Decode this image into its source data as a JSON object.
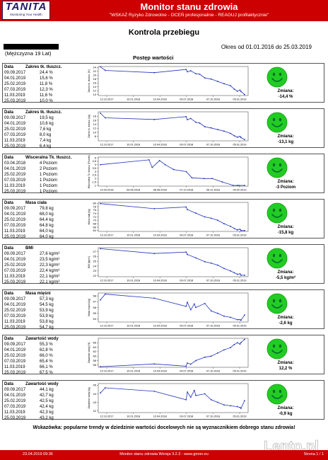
{
  "header": {
    "logo_main": "TANITA",
    "logo_tagline": "Monitoring Your Health",
    "title": "Monitor stanu zdrowia",
    "subtitle": "\"WSKAŻ Ryzyko Zdrowotne - OCEŃ profesjonalnie - REAGUJ profilaktycznie\""
  },
  "document": {
    "title": "Kontrola przebiegu",
    "date_range": "Okres od 01.01.2016 do 25.03.2019",
    "person": "(Mężczyzna 19 Lat)",
    "progress_title": "Postęp wartości"
  },
  "panels": [
    {
      "header_date": "Data",
      "header_label": "Zakres tk. tłuszcz.",
      "rows": [
        [
          "09.09.2017",
          "24,4 %"
        ],
        [
          "04.01.2019",
          "15,6 %"
        ],
        [
          "25.02.2019",
          "11,8 %"
        ],
        [
          "07.03.2019",
          "12,3 %"
        ],
        [
          "11.03.2019",
          "11,6 %"
        ],
        [
          "25.03.2019",
          "10,0 %"
        ]
      ],
      "y_axis_label": "Zakres tk. tłuszcz. [%]",
      "y_ticks": [
        "24",
        "22",
        "20",
        "18",
        "16",
        "14",
        "12",
        "10"
      ],
      "y_range": [
        9.5,
        24.5
      ],
      "x_ticks": [
        "12.10.2017",
        "10.01.2018",
        "10.04.2018",
        "09.07.2018",
        "07.10.2018",
        "05.01.2019"
      ],
      "x_range": [
        "2017-09-09",
        "2019-03-25"
      ],
      "points": [
        [
          "2017-09-09",
          24.4
        ],
        [
          "2017-09-28",
          22.5
        ],
        [
          "2018-04-07",
          21.3
        ],
        [
          "2018-08-09",
          23.0
        ],
        [
          "2018-08-14",
          21.8
        ],
        [
          "2018-08-27",
          22.3
        ],
        [
          "2018-09-16",
          20.8
        ],
        [
          "2018-10-01",
          20.5
        ],
        [
          "2018-10-21",
          18.6
        ],
        [
          "2018-11-15",
          18.0
        ],
        [
          "2018-12-10",
          16.8
        ],
        [
          "2019-01-04",
          15.6
        ],
        [
          "2019-01-29",
          14.6
        ],
        [
          "2019-02-13",
          12.8
        ],
        [
          "2019-02-25",
          11.8
        ],
        [
          "2019-03-07",
          12.3
        ],
        [
          "2019-03-11",
          11.6
        ],
        [
          "2019-03-25",
          10.0
        ]
      ],
      "change_label": "Zmiana:",
      "change_value": "-14,4 %"
    },
    {
      "header_date": "Data",
      "header_label": "Zakres tk. tłuszcz.",
      "rows": [
        [
          "09.09.2017",
          "19,5 kg"
        ],
        [
          "04.01.2019",
          "10,6 kg"
        ],
        [
          "25.02.2019",
          "7,6 kg"
        ],
        [
          "07.03.2019",
          "8,0 kg"
        ],
        [
          "11.03.2019",
          "7,4 kg"
        ],
        [
          "25.03.2019",
          "6,4 kg"
        ]
      ],
      "y_axis_label": "Zakres tk. tłuszcz. [kg]",
      "y_ticks": [
        "18",
        "16",
        "14",
        "12",
        "10",
        "8"
      ],
      "y_range": [
        5.8,
        20.2
      ],
      "x_ticks": [
        "12.10.2017",
        "10.01.2018",
        "10.04.2018",
        "09.07.2018",
        "07.10.2018",
        "05.01.2019"
      ],
      "x_range": [
        "2017-09-09",
        "2019-03-25"
      ],
      "points": [
        [
          "2017-09-09",
          19.5
        ],
        [
          "2017-09-28",
          17.2
        ],
        [
          "2018-04-07",
          16.4
        ],
        [
          "2018-08-09",
          17.8
        ],
        [
          "2018-08-14",
          16.3
        ],
        [
          "2018-08-27",
          16.9
        ],
        [
          "2018-09-16",
          15.0
        ],
        [
          "2018-10-01",
          14.6
        ],
        [
          "2018-10-21",
          12.8
        ],
        [
          "2018-11-15",
          12.2
        ],
        [
          "2018-12-10",
          11.4
        ],
        [
          "2019-01-04",
          10.6
        ],
        [
          "2019-01-29",
          9.5
        ],
        [
          "2019-02-13",
          8.3
        ],
        [
          "2019-02-25",
          7.6
        ],
        [
          "2019-03-07",
          8.0
        ],
        [
          "2019-03-11",
          7.4
        ],
        [
          "2019-03-25",
          6.4
        ]
      ],
      "change_label": "Zmiana:",
      "change_value": "-13,1 kg"
    },
    {
      "header_date": "Data",
      "header_label": "Wisceralna Tk. tłuszcz.",
      "rows": [
        [
          "03.04.2018",
          "4 Poziom"
        ],
        [
          "04.01.2019",
          "2 Poziom"
        ],
        [
          "25.02.2019",
          "1 Poziom"
        ],
        [
          "07.03.2019",
          "1 Poziom"
        ],
        [
          "11.03.2019",
          "1 Poziom"
        ],
        [
          "25.03.2019",
          "1 Poziom"
        ]
      ],
      "y_axis_label": "Wisceralna Tk. tłuszcz. [Poziom]",
      "y_ticks": [
        "5",
        "4,5",
        "4",
        "3,5",
        "3",
        "2,5",
        "2",
        "1,5",
        "1"
      ],
      "y_range": [
        0.9,
        5.1
      ],
      "x_ticks": [
        "10.04.2018",
        "09.06.2018",
        "08.08.2018",
        "07.10.2018",
        "06.12.2018",
        "04.02.2019"
      ],
      "x_range": [
        "2018-04-03",
        "2019-03-25"
      ],
      "points": [
        [
          "2018-04-03",
          4.0
        ],
        [
          "2018-08-01",
          4.7
        ],
        [
          "2018-08-09",
          3.6
        ],
        [
          "2018-08-27",
          4.6
        ],
        [
          "2018-09-10",
          4.0
        ],
        [
          "2018-10-01",
          3.3
        ],
        [
          "2018-11-01",
          3.0
        ],
        [
          "2018-11-15",
          2.1
        ],
        [
          "2018-12-15",
          2.0
        ],
        [
          "2019-01-04",
          2.0
        ],
        [
          "2019-01-29",
          1.5
        ],
        [
          "2019-02-25",
          1.0
        ],
        [
          "2019-03-07",
          1.0
        ],
        [
          "2019-03-11",
          1.0
        ],
        [
          "2019-03-25",
          1.0
        ]
      ],
      "change_label": "Zmiana:",
      "change_value": "-3 Poziom"
    },
    {
      "header_date": "Data",
      "header_label": "Masa ciała",
      "rows": [
        [
          "09.09.2017",
          "79,8 kg"
        ],
        [
          "04.01.2019",
          "68,0 kg"
        ],
        [
          "25.02.2019",
          "64,4 kg"
        ],
        [
          "07.03.2019",
          "64,8 kg"
        ],
        [
          "11.03.2019",
          "64,0 kg"
        ],
        [
          "25.03.2019",
          "64,0 kg"
        ]
      ],
      "y_axis_label": "Masa ciała [kg]",
      "y_ticks": [
        "80",
        "78",
        "76",
        "74",
        "72",
        "70",
        "68",
        "66",
        "64"
      ],
      "y_range": [
        63.5,
        80.5
      ],
      "x_ticks": [
        "12.10.2017",
        "10.01.2018",
        "10.04.2018",
        "09.07.2018",
        "07.10.2018",
        "05.01.2019"
      ],
      "x_range": [
        "2017-09-09",
        "2019-03-25"
      ],
      "points": [
        [
          "2017-09-09",
          79.8
        ],
        [
          "2018-04-07",
          76.8
        ],
        [
          "2018-08-09",
          77.8
        ],
        [
          "2018-08-14",
          76.3
        ],
        [
          "2018-09-16",
          74.2
        ],
        [
          "2018-10-21",
          72.0
        ],
        [
          "2018-11-15",
          71.2
        ],
        [
          "2018-12-10",
          70.0
        ],
        [
          "2019-01-04",
          68.0
        ],
        [
          "2019-01-29",
          66.5
        ],
        [
          "2019-02-13",
          65.2
        ],
        [
          "2019-02-25",
          64.4
        ],
        [
          "2019-03-07",
          64.8
        ],
        [
          "2019-03-11",
          64.0
        ],
        [
          "2019-03-25",
          64.0
        ]
      ],
      "change_label": "Zmiana:",
      "change_value": "-15,8 kg"
    },
    {
      "header_date": "Data",
      "header_label": "BMI",
      "rows": [
        [
          "09.09.2017",
          "27,6 kg/m²"
        ],
        [
          "04.01.2019",
          "23,5 kg/m²"
        ],
        [
          "25.02.2019",
          "22,3 kg/m²"
        ],
        [
          "07.03.2019",
          "22,4 kg/m²"
        ],
        [
          "11.03.2019",
          "22,1 kg/m²"
        ],
        [
          "25.03.2019",
          "22,1 kg/m²"
        ]
      ],
      "y_axis_label": "BMI [kg/m²]",
      "y_ticks": [
        "27",
        "26",
        "25",
        "24",
        "23",
        "22"
      ],
      "y_range": [
        21.8,
        27.8
      ],
      "x_ticks": [
        "12.10.2017",
        "10.01.2018",
        "10.04.2018",
        "09.07.2018",
        "07.10.2018",
        "05.01.2019"
      ],
      "x_range": [
        "2017-09-09",
        "2019-03-25"
      ],
      "points": [
        [
          "2017-09-09",
          27.6
        ],
        [
          "2018-04-07",
          26.6
        ],
        [
          "2018-08-09",
          26.9
        ],
        [
          "2018-08-14",
          26.4
        ],
        [
          "2018-09-16",
          25.7
        ],
        [
          "2018-10-21",
          24.9
        ],
        [
          "2018-11-15",
          24.6
        ],
        [
          "2018-12-10",
          24.2
        ],
        [
          "2019-01-04",
          23.5
        ],
        [
          "2019-01-29",
          23.0
        ],
        [
          "2019-02-13",
          22.6
        ],
        [
          "2019-02-25",
          22.3
        ],
        [
          "2019-03-07",
          22.4
        ],
        [
          "2019-03-11",
          22.1
        ],
        [
          "2019-03-25",
          22.1
        ]
      ],
      "change_label": "Zmiana:",
      "change_value": "-5,5 kg/m²"
    },
    {
      "header_date": "Data",
      "header_label": "Masa mięśni",
      "rows": [
        [
          "09.09.2017",
          "57,3 kg"
        ],
        [
          "04.01.2019",
          "54,5 kg"
        ],
        [
          "25.02.2019",
          "53,9 kg"
        ],
        [
          "07.03.2019",
          "53,9 kg"
        ],
        [
          "11.03.2019",
          "53,8 kg"
        ],
        [
          "25.03.2019",
          "54,7 kg"
        ]
      ],
      "y_axis_label": "Masa mięśni [kg]",
      "y_ticks": [
        "58",
        "57",
        "56",
        "55",
        "54"
      ],
      "y_range": [
        53.5,
        58.5
      ],
      "x_ticks": [
        "12.10.2017",
        "10.01.2018",
        "10.04.2018",
        "09.07.2018",
        "07.10.2018",
        "05.01.2019"
      ],
      "x_range": [
        "2017-09-09",
        "2019-03-25"
      ],
      "points": [
        [
          "2017-09-09",
          57.3
        ],
        [
          "2017-09-28",
          58.3
        ],
        [
          "2018-04-07",
          57.6
        ],
        [
          "2018-08-09",
          56.2
        ],
        [
          "2018-08-14",
          56.9
        ],
        [
          "2018-08-27",
          55.6
        ],
        [
          "2018-09-10",
          56.6
        ],
        [
          "2018-09-16",
          56.0
        ],
        [
          "2018-10-21",
          56.7
        ],
        [
          "2018-11-15",
          55.4
        ],
        [
          "2018-12-10",
          55.0
        ],
        [
          "2019-01-04",
          54.5
        ],
        [
          "2019-01-29",
          54.3
        ],
        [
          "2019-02-25",
          53.9
        ],
        [
          "2019-03-07",
          53.9
        ],
        [
          "2019-03-11",
          53.8
        ],
        [
          "2019-03-25",
          54.7
        ]
      ],
      "change_label": "Zmiana:",
      "change_value": "-2,6 kg"
    },
    {
      "header_date": "Data",
      "header_label": "Zawartość wody",
      "rows": [
        [
          "09.09.2017",
          "55,3 %"
        ],
        [
          "04.01.2019",
          "62,8 %"
        ],
        [
          "25.02.2019",
          "66,0 %"
        ],
        [
          "07.03.2019",
          "65,4 %"
        ],
        [
          "11.03.2019",
          "66,1 %"
        ],
        [
          "25.03.2019",
          "67,5 %"
        ]
      ],
      "y_axis_label": "Zawartość wody [%]",
      "y_ticks": [
        "66",
        "64",
        "62",
        "60",
        "58",
        "56"
      ],
      "y_range": [
        55.0,
        68.0
      ],
      "x_ticks": [
        "12.10.2017",
        "10.01.2018",
        "10.04.2018",
        "09.07.2018",
        "07.10.2018",
        "05.01.2019"
      ],
      "x_range": [
        "2017-09-09",
        "2019-03-25"
      ],
      "points": [
        [
          "2017-09-09",
          55.3
        ],
        [
          "2018-04-07",
          56.5
        ],
        [
          "2018-08-09",
          55.5
        ],
        [
          "2018-08-14",
          56.9
        ],
        [
          "2018-08-27",
          56.4
        ],
        [
          "2018-09-16",
          58.0
        ],
        [
          "2018-10-21",
          59.5
        ],
        [
          "2018-11-15",
          60.0
        ],
        [
          "2018-12-10",
          61.4
        ],
        [
          "2019-01-04",
          62.8
        ],
        [
          "2019-01-29",
          63.8
        ],
        [
          "2019-02-13",
          65.2
        ],
        [
          "2019-02-25",
          66.0
        ],
        [
          "2019-03-07",
          65.4
        ],
        [
          "2019-03-11",
          66.1
        ],
        [
          "2019-03-25",
          67.5
        ]
      ],
      "change_label": "Zmiana:",
      "change_value": "12,2 %"
    },
    {
      "header_date": "Data",
      "header_label": "Zawartość wody",
      "rows": [
        [
          "09.09.2017",
          "44,1 kg"
        ],
        [
          "04.01.2019",
          "42,7 kg"
        ],
        [
          "25.02.2019",
          "42,5 kg"
        ],
        [
          "07.03.2019",
          "42,4 kg"
        ],
        [
          "11.03.2019",
          "42,3 kg"
        ],
        [
          "25.03.2019",
          "43,2 kg"
        ]
      ],
      "y_axis_label": "Zawartość wody [kg]",
      "y_ticks": [
        "45",
        "44",
        "43",
        "42"
      ],
      "y_range": [
        41.8,
        45.2
      ],
      "x_ticks": [
        "12.10.2017",
        "10.01.2018",
        "10.04.2018",
        "09.07.2018",
        "07.10.2018",
        "05.01.2019"
      ],
      "x_range": [
        "2017-09-09",
        "2019-03-25"
      ],
      "points": [
        [
          "2017-09-09",
          44.1
        ],
        [
          "2017-09-28",
          44.7
        ],
        [
          "2018-04-07",
          44.3
        ],
        [
          "2018-08-09",
          43.3
        ],
        [
          "2018-08-14",
          44.2
        ],
        [
          "2018-08-27",
          43.6
        ],
        [
          "2018-09-10",
          44.4
        ],
        [
          "2018-09-16",
          43.8
        ],
        [
          "2018-10-21",
          44.0
        ],
        [
          "2018-11-15",
          43.3
        ],
        [
          "2018-12-10",
          43.0
        ],
        [
          "2019-01-04",
          42.7
        ],
        [
          "2019-01-29",
          42.6
        ],
        [
          "2019-02-25",
          42.5
        ],
        [
          "2019-03-07",
          42.4
        ],
        [
          "2019-03-11",
          42.3
        ],
        [
          "2019-03-25",
          43.2
        ]
      ],
      "change_label": "Zmiana:",
      "change_value": "-0,9 kg"
    }
  ],
  "hint": "Wskazówka: popularne trendy w dziedzinie wartości docelowych nie są wyznacznikiem dobrego stanu zdrowia!",
  "footer": {
    "left": "23.04.2019 09:36",
    "center": "Monitor stanu zdrowia Wersja 3.2.3 - www.gmon.eu",
    "right": "Strona 1 / 1"
  },
  "watermark": "Lento.pl",
  "colors": {
    "brand_red": "#cc0000",
    "line_blue": "#2233bb",
    "smiley_green": "#22cc22",
    "logo_navy": "#1a1a6a"
  }
}
